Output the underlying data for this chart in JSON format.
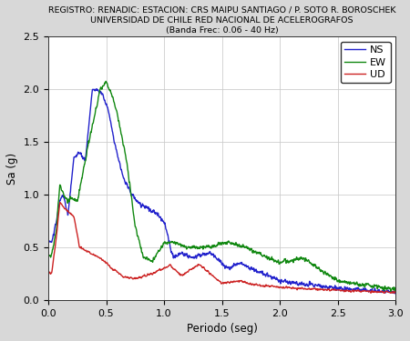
{
  "title_line1": "REGISTRO: RENADIC: ESTACION: CRS MAIPU SANTIAGO / P. SOTO R. BOROSCHEK",
  "title_line2": "UNIVERSIDAD DE CHILE RED NACIONAL DE ACELEROGRAFOS",
  "title_line3": "(Banda Frec: 0.06 - 40 Hz)",
  "xlabel": "Periodo (seg)",
  "ylabel": "Sa (g)",
  "xlim": [
    0,
    3
  ],
  "ylim": [
    0,
    2.5
  ],
  "xticks": [
    0,
    0.5,
    1,
    1.5,
    2,
    2.5,
    3
  ],
  "yticks": [
    0,
    0.5,
    1,
    1.5,
    2,
    2.5
  ],
  "legend_labels": [
    "NS",
    "EW",
    "UD"
  ],
  "legend_colors": [
    "#2222CC",
    "#118811",
    "#CC2222"
  ],
  "fig_bg_color": "#d8d8d8",
  "ax_bg_color": "#ffffff",
  "grid_color": "#c8c8c8",
  "title_fontsize": 6.8,
  "axis_label_fontsize": 8.5,
  "tick_fontsize": 8,
  "legend_fontsize": 8,
  "linewidth": 1.0
}
